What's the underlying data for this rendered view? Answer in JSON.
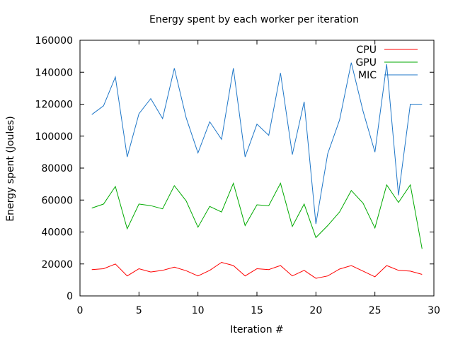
{
  "chart_data": {
    "type": "line",
    "title": "Energy spent by each worker per iteration",
    "xlabel": "Iteration #",
    "ylabel": "Energy spent (Joules)",
    "xlim": [
      0,
      30
    ],
    "ylim": [
      0,
      160000
    ],
    "xticks": [
      0,
      5,
      10,
      15,
      20,
      25,
      30
    ],
    "yticks": [
      0,
      20000,
      40000,
      60000,
      80000,
      100000,
      120000,
      140000,
      160000
    ],
    "grid": false,
    "legend_position": "top-right",
    "x": [
      1,
      2,
      3,
      4,
      5,
      6,
      7,
      8,
      9,
      10,
      11,
      12,
      13,
      14,
      15,
      16,
      17,
      18,
      19,
      20,
      21,
      22,
      23,
      24,
      25,
      26,
      27,
      28,
      29
    ],
    "series": [
      {
        "name": "CPU",
        "color": "#ff0000",
        "values": [
          16500,
          17000,
          20000,
          12500,
          17000,
          15000,
          16000,
          18000,
          15800,
          12500,
          16000,
          21000,
          19000,
          12500,
          17000,
          16500,
          19000,
          12500,
          16000,
          11000,
          12500,
          16800,
          19000,
          15500,
          12000,
          19000,
          16000,
          15500,
          13500
        ]
      },
      {
        "name": "GPU",
        "color": "#00aa00",
        "values": [
          55000,
          57500,
          68500,
          42000,
          57500,
          56500,
          54500,
          69000,
          59500,
          43000,
          56000,
          52500,
          70500,
          44000,
          57000,
          56500,
          70500,
          43500,
          57500,
          36500,
          44000,
          52500,
          66000,
          58000,
          42500,
          69500,
          58500,
          69500,
          29500
        ]
      },
      {
        "name": "MIC",
        "color": "#1f77c8",
        "values": [
          113500,
          119000,
          137000,
          87000,
          114000,
          123500,
          111000,
          142500,
          111500,
          89500,
          109000,
          98000,
          142500,
          87000,
          107500,
          100500,
          139500,
          88500,
          121500,
          45000,
          89000,
          110000,
          146000,
          115500,
          90000,
          145000,
          63000,
          120000,
          120000
        ]
      }
    ]
  }
}
